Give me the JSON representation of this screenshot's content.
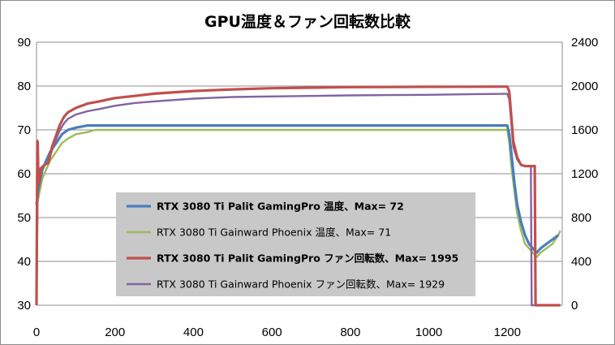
{
  "chart_data": {
    "type": "line",
    "title": "GPU温度＆ファン回転数比較",
    "x_ticks": [
      "0",
      "200",
      "400",
      "600",
      "800",
      "1000",
      "1200"
    ],
    "y_left_ticks": [
      "30",
      "40",
      "50",
      "60",
      "70",
      "80",
      "90"
    ],
    "y_right_ticks": [
      "0",
      "400",
      "800",
      "1200",
      "1600",
      "2000",
      "2400"
    ],
    "xlim": [
      0,
      1340
    ],
    "ylim_left": [
      30,
      90
    ],
    "ylim_right": [
      0,
      2400
    ],
    "grid": "horizontal",
    "legend_position": "center-left",
    "series": [
      {
        "name": "RTX 3080 Ti Palit GamingPro 温度、Max= 72",
        "axis": "left",
        "color": "#4a7ebb",
        "bold": true,
        "x": [
          0,
          4,
          8,
          15,
          25,
          35,
          50,
          65,
          80,
          100,
          130,
          150,
          200,
          400,
          600,
          800,
          1000,
          1100,
          1200,
          1205,
          1210,
          1218,
          1225,
          1235,
          1245,
          1255,
          1265,
          1275,
          1285,
          1300,
          1315,
          1330
        ],
        "y": [
          53,
          56,
          58,
          61,
          63,
          65,
          67,
          69,
          70,
          70.5,
          71,
          71,
          71,
          71,
          71,
          71,
          71,
          71,
          71,
          69,
          65,
          58,
          53,
          49,
          46,
          44,
          43,
          42,
          43,
          44,
          45,
          46
        ]
      },
      {
        "name": "RTX 3080 Ti Gainward Phoenix 温度、Max= 71",
        "axis": "left",
        "color": "#9bbb59",
        "bold": false,
        "x": [
          0,
          4,
          8,
          15,
          25,
          35,
          50,
          65,
          80,
          100,
          130,
          150,
          200,
          400,
          600,
          800,
          1000,
          1100,
          1200,
          1205,
          1210,
          1218,
          1225,
          1235,
          1245,
          1255,
          1265,
          1275,
          1285,
          1300,
          1315,
          1330,
          1335
        ],
        "y": [
          52,
          54,
          56,
          59,
          61,
          63,
          65,
          67,
          68,
          69,
          69.5,
          70,
          70,
          70,
          70,
          70,
          70,
          70,
          70,
          67,
          62,
          56,
          51,
          47,
          44,
          43,
          42,
          41,
          42,
          43,
          44,
          46,
          47
        ]
      },
      {
        "name": "RTX 3080 Ti Palit GamingPro ファン回転数、Max= 1995",
        "axis": "right",
        "color": "#c0504d",
        "bold": true,
        "x": [
          0,
          2,
          3,
          5,
          8,
          12,
          20,
          30,
          40,
          50,
          60,
          70,
          80,
          100,
          130,
          160,
          200,
          250,
          300,
          400,
          500,
          600,
          700,
          800,
          900,
          1000,
          1100,
          1195,
          1200,
          1205,
          1215,
          1225,
          1235,
          1245,
          1255,
          1265,
          1270,
          1272,
          1280,
          1300,
          1320,
          1335
        ],
        "y": [
          0,
          1500,
          1480,
          1100,
          1150,
          1250,
          1280,
          1300,
          1450,
          1550,
          1650,
          1720,
          1760,
          1800,
          1840,
          1860,
          1890,
          1910,
          1930,
          1955,
          1970,
          1980,
          1985,
          1990,
          1992,
          1993,
          1994,
          1995,
          1995,
          1950,
          1500,
          1350,
          1280,
          1270,
          1270,
          1270,
          1270,
          0,
          0,
          0,
          0,
          0
        ]
      },
      {
        "name": "RTX 3080 Ti Gainward Phoenix ファン回転数、Max= 1929",
        "axis": "right",
        "color": "#8064a2",
        "bold": false,
        "x": [
          0,
          3,
          5,
          10,
          20,
          30,
          40,
          50,
          60,
          70,
          80,
          100,
          130,
          160,
          200,
          250,
          300,
          400,
          500,
          600,
          700,
          800,
          900,
          1000,
          1100,
          1195,
          1200,
          1205,
          1215,
          1225,
          1235,
          1245,
          1255,
          1260,
          1262,
          1270,
          1300,
          1335
        ],
        "y": [
          0,
          1100,
          1150,
          1250,
          1280,
          1300,
          1420,
          1520,
          1600,
          1660,
          1700,
          1740,
          1770,
          1790,
          1820,
          1845,
          1860,
          1885,
          1900,
          1905,
          1910,
          1915,
          1918,
          1920,
          1925,
          1929,
          1929,
          1880,
          1450,
          1330,
          1280,
          1270,
          1270,
          1270,
          0,
          0,
          0,
          0
        ]
      }
    ]
  }
}
